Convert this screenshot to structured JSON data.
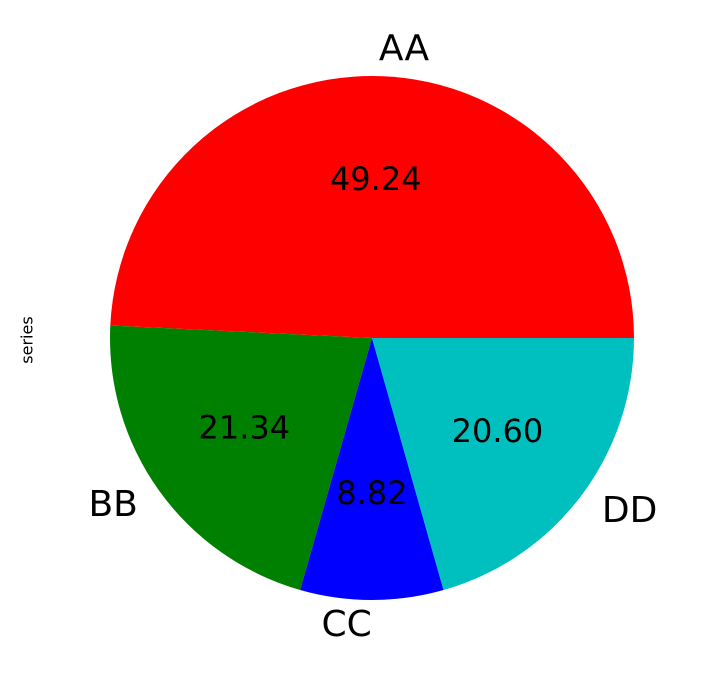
{
  "chart_data": {
    "type": "pie",
    "ylabel": "series",
    "categories": [
      "AA",
      "BB",
      "CC",
      "DD"
    ],
    "values": [
      49.24,
      21.34,
      8.82,
      20.6
    ],
    "value_labels": [
      "49.24",
      "21.34",
      "8.82",
      "20.60"
    ],
    "colors": [
      "#ff0000",
      "#008000",
      "#0000ff",
      "#00bfbf"
    ]
  }
}
